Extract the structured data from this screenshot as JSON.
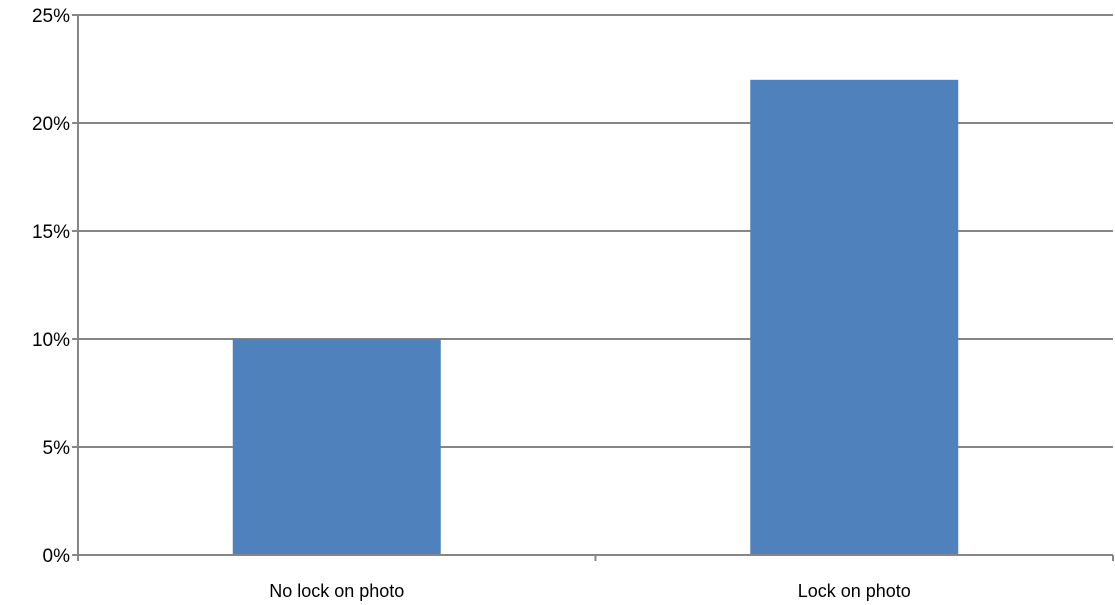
{
  "chart_data": {
    "type": "bar",
    "categories": [
      "No lock on photo",
      "Lock on photo"
    ],
    "values": [
      10,
      22
    ],
    "value_unit": "%",
    "ylim": [
      0,
      25
    ],
    "yticks": [
      {
        "value": 0,
        "label": "0%"
      },
      {
        "value": 5,
        "label": "5%"
      },
      {
        "value": 10,
        "label": "10%"
      },
      {
        "value": 15,
        "label": "15%"
      },
      {
        "value": 20,
        "label": "20%"
      },
      {
        "value": 25,
        "label": "25%"
      }
    ],
    "grid": true,
    "legend": "none",
    "bar_color": "#4F81BD",
    "grid_color": "#868686"
  }
}
